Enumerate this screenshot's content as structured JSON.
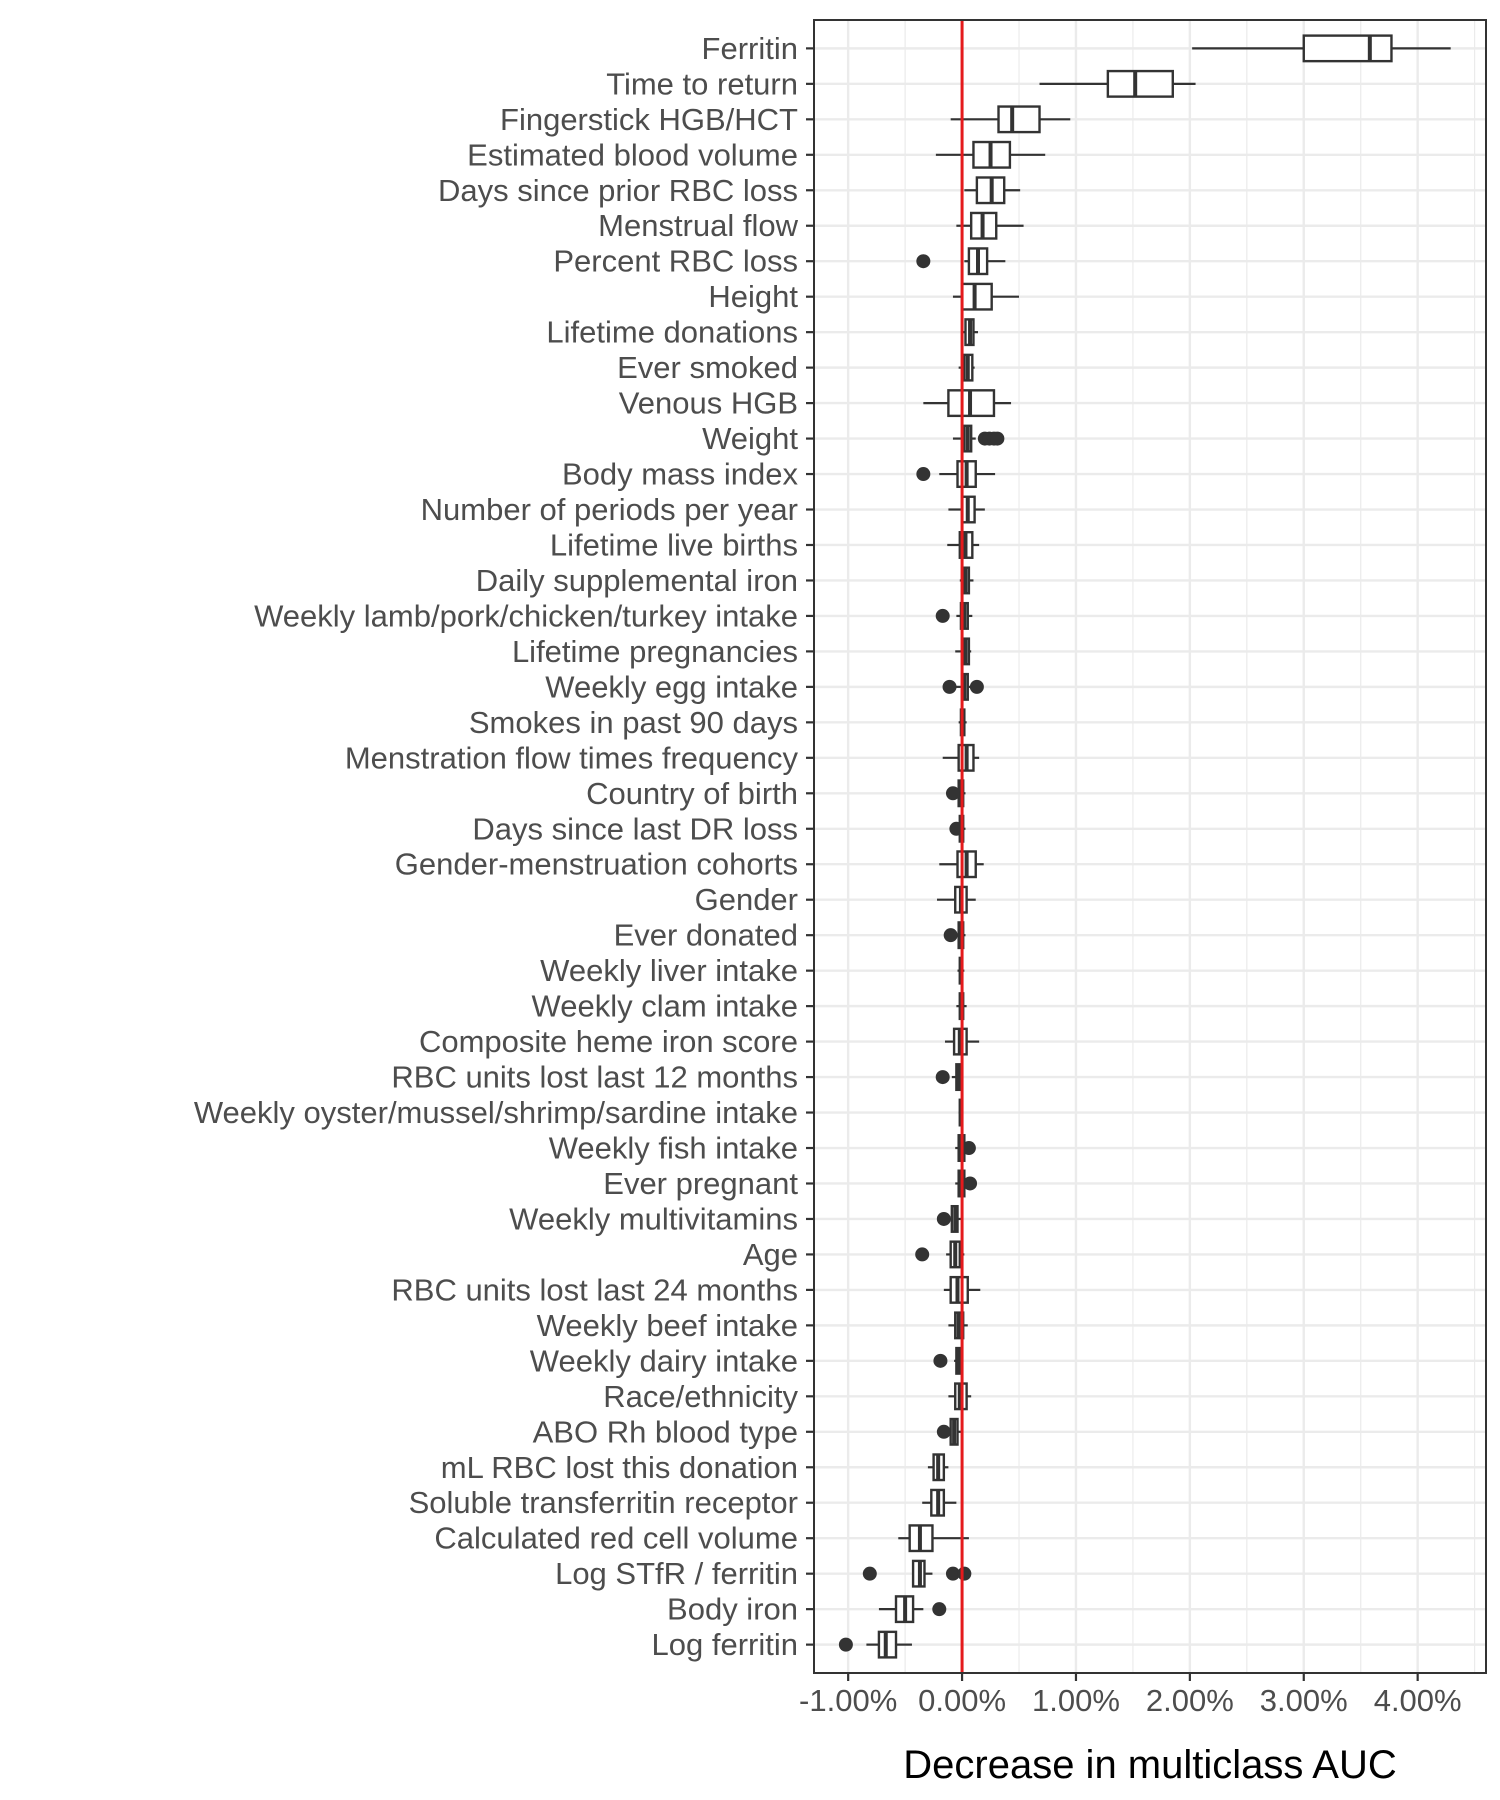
{
  "chart_data": {
    "type": "boxplot",
    "orientation": "horizontal",
    "title": "",
    "xlabel": "Decrease in multiclass AUC",
    "ylabel": "",
    "xlim": [
      -1.3,
      4.6
    ],
    "xticks": [
      -1,
      0,
      1,
      2,
      3,
      4
    ],
    "xtick_labels": [
      "-1.00%",
      "0.00%",
      "1.00%",
      "2.00%",
      "3.00%",
      "4.00%"
    ],
    "reference_line": {
      "x": 0,
      "color": "#e41a1c"
    },
    "grid": true,
    "legend": "none",
    "categories": [
      "Ferritin",
      "Time to return",
      "Fingerstick HGB/HCT",
      "Estimated blood volume",
      "Days since prior RBC loss",
      "Menstrual flow",
      "Percent RBC loss",
      "Height",
      "Lifetime donations",
      "Ever smoked",
      "Venous HGB",
      "Weight",
      "Body mass index",
      "Number of periods per year",
      "Lifetime live births",
      "Daily supplemental iron",
      "Weekly lamb/pork/chicken/turkey intake",
      "Lifetime pregnancies",
      "Weekly egg intake",
      "Smokes in past 90 days",
      "Menstration flow times frequency",
      "Country of birth",
      "Days since last DR loss",
      "Gender-menstruation cohorts",
      "Gender",
      "Ever donated",
      "Weekly liver intake",
      "Weekly clam intake",
      "Composite heme iron score",
      "RBC units lost last 12 months",
      "Weekly oyster/mussel/shrimp/sardine intake",
      "Weekly fish intake",
      "Ever pregnant",
      "Weekly multivitamins",
      "Age",
      "RBC units lost last 24 months",
      "Weekly beef intake",
      "Weekly dairy intake",
      "Race/ethnicity",
      "ABO Rh blood type",
      "mL RBC lost this donation",
      "Soluble transferritin receptor",
      "Calculated red cell volume",
      "Log STfR / ferritin",
      "Body iron",
      "Log ferritin"
    ],
    "boxes": [
      {
        "min": 2.02,
        "q1": 3.0,
        "median": 3.58,
        "q3": 3.77,
        "max": 4.29,
        "outliers": []
      },
      {
        "min": 0.68,
        "q1": 1.28,
        "median": 1.52,
        "q3": 1.85,
        "max": 2.05,
        "outliers": []
      },
      {
        "min": -0.1,
        "q1": 0.32,
        "median": 0.44,
        "q3": 0.68,
        "max": 0.95,
        "outliers": []
      },
      {
        "min": -0.23,
        "q1": 0.1,
        "median": 0.25,
        "q3": 0.42,
        "max": 0.73,
        "outliers": []
      },
      {
        "min": 0.02,
        "q1": 0.13,
        "median": 0.26,
        "q3": 0.37,
        "max": 0.51,
        "outliers": []
      },
      {
        "min": -0.05,
        "q1": 0.08,
        "median": 0.18,
        "q3": 0.3,
        "max": 0.54,
        "outliers": []
      },
      {
        "min": 0.02,
        "q1": 0.06,
        "median": 0.14,
        "q3": 0.22,
        "max": 0.38,
        "outliers": [
          -0.34
        ]
      },
      {
        "min": -0.08,
        "q1": 0.0,
        "median": 0.11,
        "q3": 0.26,
        "max": 0.5,
        "outliers": []
      },
      {
        "min": 0.0,
        "q1": 0.03,
        "median": 0.07,
        "q3": 0.1,
        "max": 0.14,
        "outliers": []
      },
      {
        "min": -0.03,
        "q1": 0.02,
        "median": 0.05,
        "q3": 0.09,
        "max": 0.11,
        "outliers": []
      },
      {
        "min": -0.34,
        "q1": -0.12,
        "median": 0.07,
        "q3": 0.28,
        "max": 0.43,
        "outliers": []
      },
      {
        "min": -0.08,
        "q1": 0.02,
        "median": 0.05,
        "q3": 0.08,
        "max": 0.12,
        "outliers": [
          0.2,
          0.24,
          0.28,
          0.31
        ]
      },
      {
        "min": -0.2,
        "q1": -0.04,
        "median": 0.04,
        "q3": 0.12,
        "max": 0.29,
        "outliers": [
          -0.34
        ]
      },
      {
        "min": -0.12,
        "q1": 0.0,
        "median": 0.05,
        "q3": 0.11,
        "max": 0.2,
        "outliers": []
      },
      {
        "min": -0.13,
        "q1": -0.02,
        "median": 0.03,
        "q3": 0.09,
        "max": 0.15,
        "outliers": []
      },
      {
        "min": -0.02,
        "q1": 0.0,
        "median": 0.03,
        "q3": 0.06,
        "max": 0.1,
        "outliers": []
      },
      {
        "min": -0.05,
        "q1": -0.01,
        "median": 0.02,
        "q3": 0.05,
        "max": 0.09,
        "outliers": [
          -0.17
        ]
      },
      {
        "min": -0.06,
        "q1": 0.0,
        "median": 0.03,
        "q3": 0.06,
        "max": 0.08,
        "outliers": []
      },
      {
        "min": -0.06,
        "q1": 0.0,
        "median": 0.02,
        "q3": 0.05,
        "max": 0.08,
        "outliers": [
          -0.11,
          0.13
        ]
      },
      {
        "min": -0.03,
        "q1": -0.01,
        "median": 0.0,
        "q3": 0.02,
        "max": 0.04,
        "outliers": []
      },
      {
        "min": -0.17,
        "q1": -0.03,
        "median": 0.04,
        "q3": 0.1,
        "max": 0.15,
        "outliers": []
      },
      {
        "min": -0.05,
        "q1": -0.03,
        "median": -0.01,
        "q3": 0.01,
        "max": 0.03,
        "outliers": [
          -0.08
        ]
      },
      {
        "min": -0.04,
        "q1": -0.02,
        "median": -0.01,
        "q3": 0.01,
        "max": 0.03,
        "outliers": [
          -0.05
        ]
      },
      {
        "min": -0.2,
        "q1": -0.04,
        "median": 0.04,
        "q3": 0.12,
        "max": 0.19,
        "outliers": []
      },
      {
        "min": -0.22,
        "q1": -0.06,
        "median": -0.01,
        "q3": 0.04,
        "max": 0.12,
        "outliers": []
      },
      {
        "min": -0.07,
        "q1": -0.03,
        "median": -0.01,
        "q3": 0.01,
        "max": 0.03,
        "outliers": [
          -0.1
        ]
      },
      {
        "min": -0.04,
        "q1": -0.02,
        "median": -0.01,
        "q3": 0.0,
        "max": 0.02,
        "outliers": []
      },
      {
        "min": -0.05,
        "q1": -0.02,
        "median": -0.01,
        "q3": 0.01,
        "max": 0.04,
        "outliers": []
      },
      {
        "min": -0.15,
        "q1": -0.07,
        "median": -0.02,
        "q3": 0.04,
        "max": 0.15,
        "outliers": []
      },
      {
        "min": -0.09,
        "q1": -0.05,
        "median": -0.03,
        "q3": -0.01,
        "max": 0.01,
        "outliers": [
          -0.17
        ]
      },
      {
        "min": -0.03,
        "q1": -0.02,
        "median": -0.01,
        "q3": -0.01,
        "max": 0.0,
        "outliers": []
      },
      {
        "min": -0.06,
        "q1": -0.03,
        "median": -0.01,
        "q3": 0.02,
        "max": 0.04,
        "outliers": [
          0.06
        ]
      },
      {
        "min": -0.06,
        "q1": -0.03,
        "median": -0.01,
        "q3": 0.02,
        "max": 0.05,
        "outliers": [
          0.07
        ]
      },
      {
        "min": -0.13,
        "q1": -0.09,
        "median": -0.06,
        "q3": -0.04,
        "max": -0.01,
        "outliers": [
          -0.16
        ]
      },
      {
        "min": -0.14,
        "q1": -0.1,
        "median": -0.06,
        "q3": -0.02,
        "max": 0.02,
        "outliers": [
          -0.35
        ]
      },
      {
        "min": -0.16,
        "q1": -0.1,
        "median": -0.04,
        "q3": 0.05,
        "max": 0.16,
        "outliers": []
      },
      {
        "min": -0.12,
        "q1": -0.06,
        "median": -0.03,
        "q3": 0.01,
        "max": 0.05,
        "outliers": []
      },
      {
        "min": -0.07,
        "q1": -0.05,
        "median": -0.03,
        "q3": -0.02,
        "max": -0.01,
        "outliers": [
          -0.19
        ]
      },
      {
        "min": -0.12,
        "q1": -0.06,
        "median": -0.02,
        "q3": 0.04,
        "max": 0.08,
        "outliers": []
      },
      {
        "min": -0.13,
        "q1": -0.1,
        "median": -0.07,
        "q3": -0.04,
        "max": -0.01,
        "outliers": [
          -0.16
        ]
      },
      {
        "min": -0.3,
        "q1": -0.25,
        "median": -0.21,
        "q3": -0.16,
        "max": -0.12,
        "outliers": []
      },
      {
        "min": -0.35,
        "q1": -0.27,
        "median": -0.21,
        "q3": -0.16,
        "max": -0.05,
        "outliers": []
      },
      {
        "min": -0.56,
        "q1": -0.46,
        "median": -0.37,
        "q3": -0.26,
        "max": 0.06,
        "outliers": []
      },
      {
        "min": -0.43,
        "q1": -0.43,
        "median": -0.37,
        "q3": -0.33,
        "max": -0.26,
        "outliers": [
          -0.81,
          -0.08,
          0.02
        ]
      },
      {
        "min": -0.73,
        "q1": -0.58,
        "median": -0.5,
        "q3": -0.43,
        "max": -0.34,
        "outliers": [
          -0.2
        ]
      },
      {
        "min": -0.84,
        "q1": -0.73,
        "median": -0.67,
        "q3": -0.58,
        "max": -0.44,
        "outliers": [
          -1.02
        ]
      }
    ]
  }
}
